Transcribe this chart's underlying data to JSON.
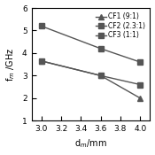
{
  "x": [
    3.0,
    3.6,
    4.0
  ],
  "CF1": [
    3.65,
    3.0,
    2.0
  ],
  "CF2": [
    5.2,
    4.2,
    3.6
  ],
  "CF3": [
    3.65,
    3.0,
    2.6
  ],
  "CF1_label": "CF1 (9:1)",
  "CF2_label": "CF2 (2.3:1)",
  "CF3_label": "CF3 (1:1)",
  "xlabel": "d$_m$/mm",
  "ylabel": "f$_m$ /GHz",
  "xlim": [
    2.9,
    4.1
  ],
  "ylim": [
    1.0,
    6.0
  ],
  "xticks": [
    3.0,
    3.2,
    3.4,
    3.6,
    3.8,
    4.0
  ],
  "yticks": [
    1,
    2,
    3,
    4,
    5,
    6
  ],
  "color": "#555555",
  "background": "#ffffff"
}
